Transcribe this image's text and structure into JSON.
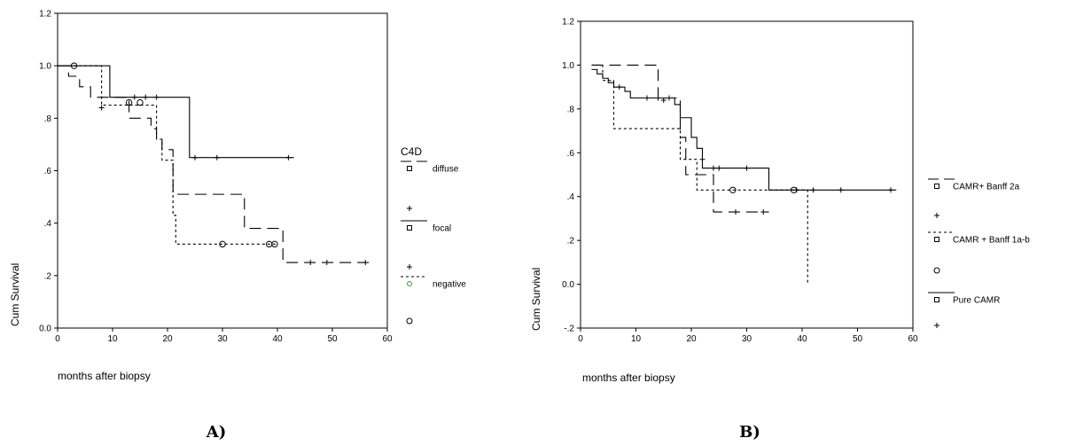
{
  "chart_data": [
    {
      "type": "line",
      "panel_label": "A)",
      "xlabel": "months after biopsy",
      "ylabel": "Cum Survival",
      "xlim": [
        0,
        60
      ],
      "ylim": [
        0.0,
        1.2
      ],
      "xticks": [
        0,
        10,
        20,
        30,
        40,
        50,
        60
      ],
      "yticks": [
        {
          "value": 0.0,
          "label": "0.0"
        },
        {
          "value": 0.2,
          "label": ".2"
        },
        {
          "value": 0.4,
          "label": ".4"
        },
        {
          "value": 0.6,
          "label": ".6"
        },
        {
          "value": 0.8,
          "label": ".8"
        },
        {
          "value": 1.0,
          "label": "1.0"
        },
        {
          "value": 1.2,
          "label": "1.2"
        }
      ],
      "legend": {
        "title": "C4D",
        "position": "right",
        "entries": [
          {
            "label": "diffuse",
            "line": "long-dash",
            "marker": "square"
          },
          {
            "label": "",
            "marker": "plus"
          },
          {
            "label": "focal",
            "line": "solid",
            "marker": "square"
          },
          {
            "label": "",
            "marker": "plus"
          },
          {
            "label": "negative",
            "line": "dotted",
            "marker": "circle-green"
          },
          {
            "label": "",
            "marker": "circle"
          }
        ]
      },
      "series": [
        {
          "name": "diffuse",
          "line": "long-dash",
          "steps": [
            [
              0,
              1.0
            ],
            [
              2,
              0.96
            ],
            [
              4,
              0.92
            ],
            [
              6,
              0.88
            ],
            [
              13,
              0.8
            ],
            [
              17,
              0.76
            ],
            [
              18,
              0.72
            ],
            [
              19,
              0.68
            ],
            [
              21,
              0.51
            ],
            [
              34,
              0.38
            ],
            [
              41,
              0.25
            ],
            [
              57,
              0.25
            ]
          ],
          "censored": [
            [
              8,
              0.84
            ],
            [
              46,
              0.25
            ],
            [
              49,
              0.25
            ],
            [
              56,
              0.25
            ]
          ]
        },
        {
          "name": "focal",
          "line": "solid",
          "steps": [
            [
              0,
              1.0
            ],
            [
              9.5,
              0.88
            ],
            [
              24,
              0.65
            ],
            [
              43,
              0.65
            ]
          ],
          "censored": [
            [
              14,
              0.88
            ],
            [
              16,
              0.88
            ],
            [
              18,
              0.88
            ],
            [
              25,
              0.65
            ],
            [
              29,
              0.65
            ],
            [
              42,
              0.65
            ]
          ]
        },
        {
          "name": "negative",
          "line": "dotted",
          "steps": [
            [
              0,
              1.0
            ],
            [
              8,
              0.85
            ],
            [
              18,
              0.72
            ],
            [
              19,
              0.64
            ],
            [
              21,
              0.43
            ],
            [
              21.5,
              0.32
            ],
            [
              40,
              0.32
            ]
          ],
          "censored": [
            [
              3,
              1.0
            ],
            [
              13,
              0.86
            ],
            [
              15,
              0.86
            ],
            [
              30,
              0.32
            ],
            [
              38.5,
              0.32
            ],
            [
              39.5,
              0.32
            ]
          ]
        }
      ]
    },
    {
      "type": "line",
      "panel_label": "B)",
      "xlabel": "months after biopsy",
      "ylabel": "Cum Survival",
      "xlim": [
        0,
        60
      ],
      "ylim": [
        -0.2,
        1.2
      ],
      "xticks": [
        0,
        10,
        20,
        30,
        40,
        50,
        60
      ],
      "yticks": [
        {
          "value": -0.2,
          "label": "-.2"
        },
        {
          "value": 0.0,
          "label": "0.0"
        },
        {
          "value": 0.2,
          "label": ".2"
        },
        {
          "value": 0.4,
          "label": ".4"
        },
        {
          "value": 0.6,
          "label": ".6"
        },
        {
          "value": 0.8,
          "label": ".8"
        },
        {
          "value": 1.0,
          "label": "1.0"
        },
        {
          "value": 1.2,
          "label": "1.2"
        }
      ],
      "legend": {
        "title": "",
        "position": "right",
        "entries": [
          {
            "label": "CAMR+ Banff 2a",
            "line": "long-dash",
            "marker": "square"
          },
          {
            "label": "",
            "marker": "plus"
          },
          {
            "label": "CAMR + Banff 1a-b",
            "line": "dotted",
            "marker": "square"
          },
          {
            "label": "",
            "marker": "circle"
          },
          {
            "label": "Pure CAMR",
            "line": "solid",
            "marker": "square"
          },
          {
            "label": "",
            "marker": "plus"
          }
        ]
      },
      "series": [
        {
          "name": "CAMR+ Banff 2a",
          "line": "long-dash",
          "steps": [
            [
              2,
              1.0
            ],
            [
              14,
              0.85
            ],
            [
              18,
              0.67
            ],
            [
              19,
              0.5
            ],
            [
              24,
              0.33
            ],
            [
              34,
              0.33
            ]
          ],
          "censored": [
            [
              15,
              0.84
            ],
            [
              28,
              0.33
            ],
            [
              33,
              0.33
            ]
          ]
        },
        {
          "name": "CAMR + Banff 1a-b",
          "line": "dotted",
          "steps": [
            [
              2,
              1.0
            ],
            [
              4,
              0.93
            ],
            [
              6,
              0.71
            ],
            [
              18,
              0.57
            ],
            [
              21,
              0.43
            ],
            [
              41,
              0.43
            ],
            [
              41,
              0.0
            ]
          ],
          "censored": [
            [
              27.5,
              0.43
            ],
            [
              38.5,
              0.43
            ]
          ]
        },
        {
          "name": "Pure CAMR",
          "line": "solid",
          "steps": [
            [
              2,
              0.98
            ],
            [
              3,
              0.96
            ],
            [
              4,
              0.94
            ],
            [
              5,
              0.92
            ],
            [
              6,
              0.9
            ],
            [
              8,
              0.88
            ],
            [
              9,
              0.85
            ],
            [
              17,
              0.82
            ],
            [
              18,
              0.76
            ],
            [
              20,
              0.67
            ],
            [
              21,
              0.62
            ],
            [
              22,
              0.53
            ],
            [
              34,
              0.43
            ],
            [
              57,
              0.43
            ]
          ],
          "censored": [
            [
              7,
              0.9
            ],
            [
              12,
              0.85
            ],
            [
              14,
              0.85
            ],
            [
              16,
              0.85
            ],
            [
              22,
              0.57
            ],
            [
              24,
              0.53
            ],
            [
              25,
              0.53
            ],
            [
              30,
              0.53
            ],
            [
              39,
              0.43
            ],
            [
              42,
              0.43
            ],
            [
              47,
              0.43
            ],
            [
              56,
              0.43
            ]
          ]
        }
      ]
    }
  ]
}
